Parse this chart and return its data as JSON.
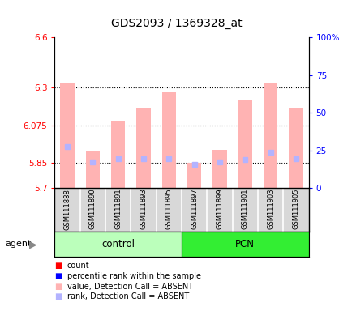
{
  "title": "GDS2093 / 1369328_at",
  "samples": [
    "GSM111888",
    "GSM111890",
    "GSM111891",
    "GSM111893",
    "GSM111895",
    "GSM111897",
    "GSM111899",
    "GSM111901",
    "GSM111903",
    "GSM111905"
  ],
  "groups": [
    "control",
    "control",
    "control",
    "control",
    "control",
    "PCN",
    "PCN",
    "PCN",
    "PCN",
    "PCN"
  ],
  "values": [
    6.33,
    5.92,
    6.1,
    6.18,
    6.27,
    5.85,
    5.93,
    6.23,
    6.33,
    6.18
  ],
  "ranks": [
    5.95,
    5.855,
    5.875,
    5.875,
    5.875,
    5.84,
    5.855,
    5.87,
    5.915,
    5.875
  ],
  "ylim_left": [
    5.7,
    6.6
  ],
  "ylim_right": [
    0,
    100
  ],
  "yticks_left": [
    5.7,
    5.85,
    6.075,
    6.3,
    6.6
  ],
  "ytick_labels_left": [
    "5.7",
    "5.85",
    "6.075",
    "6.3",
    "6.6"
  ],
  "yticks_right": [
    0,
    25,
    50,
    75,
    100
  ],
  "ytick_labels_right": [
    "0",
    "25",
    "50",
    "75",
    "100%"
  ],
  "bar_color": "#ffb3b3",
  "rank_color": "#b3b3ff",
  "bar_width": 0.55,
  "bg_color": "#ffffff",
  "control_bg": "#bbffbb",
  "pcn_bg": "#33ee33",
  "agent_label": "agent",
  "legend_colors": [
    "#ff0000",
    "#0000ff",
    "#ffb3b3",
    "#b3b3ff"
  ],
  "legend_labels": [
    "count",
    "percentile rank within the sample",
    "value, Detection Call = ABSENT",
    "rank, Detection Call = ABSENT"
  ]
}
